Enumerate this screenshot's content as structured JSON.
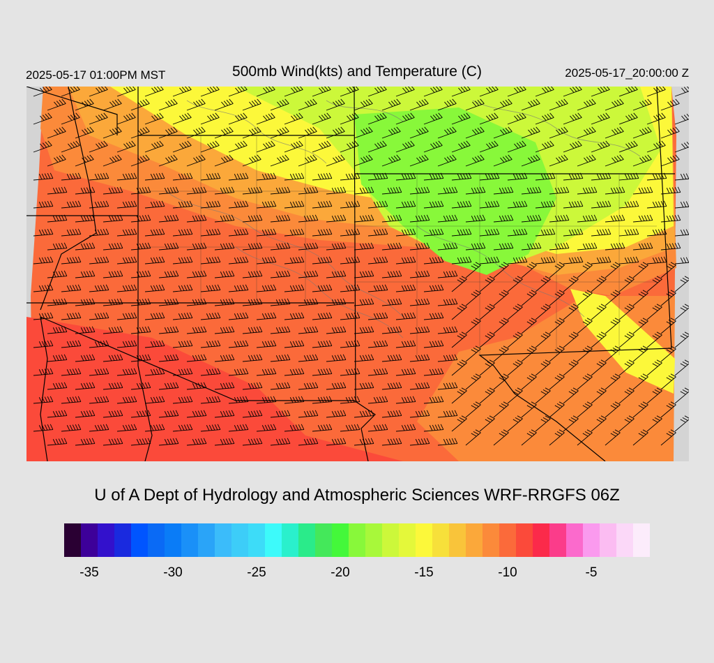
{
  "header": {
    "local_time": "2025-05-17 01:00PM MST",
    "title": "500mb Wind(kts) and Temperature (C)",
    "valid_time": "2025-05-17_20:00:00 Z"
  },
  "credit": "U of A Dept of Hydrology and Atmospheric Sciences WRF-RRGFS 06Z",
  "colorbar": {
    "colors": [
      "#2a0033",
      "#3d0099",
      "#3311cc",
      "#1a2adf",
      "#0055ff",
      "#0a6af5",
      "#0a7cf7",
      "#1a90f8",
      "#2aa4f8",
      "#3bbcfa",
      "#3dcdf8",
      "#3ddcf8",
      "#3dfafa",
      "#2af0cc",
      "#2aeb8a",
      "#44e85a",
      "#44f83a",
      "#88f83a",
      "#a8f83a",
      "#ccf83a",
      "#e4f83a",
      "#fcf83a",
      "#f7e03a",
      "#f9c43a",
      "#fba83a",
      "#fb8a3a",
      "#fb6a3a",
      "#fb4a3a",
      "#fb2a4a",
      "#fb3c8a",
      "#fb6acc",
      "#fa9aee",
      "#fbbcf2",
      "#fbd8f8",
      "#fcecfb"
    ],
    "tick_labels": [
      {
        "label": "-35",
        "value": -35
      },
      {
        "label": "-30",
        "value": -30
      },
      {
        "label": "-25",
        "value": -25
      },
      {
        "label": "-20",
        "value": -20
      },
      {
        "label": "-15",
        "value": -15
      },
      {
        "label": "-10",
        "value": -10
      },
      {
        "label": "-5",
        "value": -5
      }
    ],
    "min": -36.5,
    "max": -1.5
  },
  "map_colors": {
    "outside": "#d4d4d4",
    "orange_red": "#fb6a3a",
    "red": "#fb4a3a",
    "orange": "#fb8a3a",
    "light_orange": "#fba83a",
    "yellow": "#fcf83a",
    "yellow_green": "#ccf83a",
    "green": "#88f83a",
    "border": "#000000",
    "barb": "#000000",
    "contour": "#777777"
  }
}
